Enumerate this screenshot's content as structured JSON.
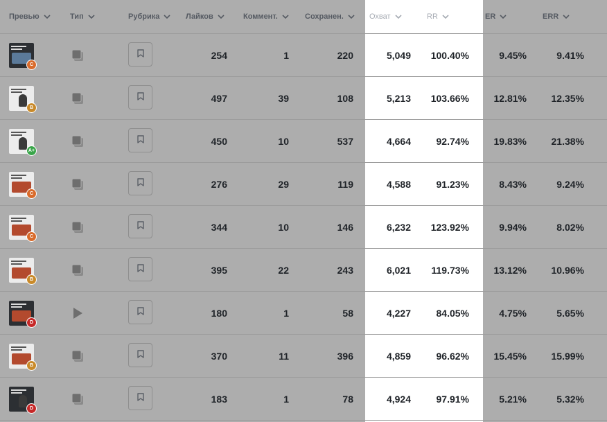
{
  "colors": {
    "page_bg": "#adadad",
    "highlight_bg": "#ffffff",
    "badge_c": "#d96b2b",
    "badge_b": "#c98a2a",
    "badge_a_plus": "#3aa54a",
    "badge_d": "#c62828"
  },
  "columns": [
    {
      "key": "preview",
      "label": "Превью"
    },
    {
      "key": "type",
      "label": "Тип"
    },
    {
      "key": "category",
      "label": "Рубрика"
    },
    {
      "key": "likes",
      "label": "Лайков"
    },
    {
      "key": "comments",
      "label": "Коммент."
    },
    {
      "key": "saved",
      "label": "Сохранен."
    },
    {
      "key": "reach",
      "label": "Охват"
    },
    {
      "key": "rr",
      "label": "RR"
    },
    {
      "key": "er",
      "label": "ER"
    },
    {
      "key": "err",
      "label": "ERR"
    }
  ],
  "rows": [
    {
      "grade": "C",
      "grade_color": "#d96b2b",
      "type_icon": "carousel-icon",
      "likes": "254",
      "comments": "1",
      "saved": "220",
      "reach": "5,049",
      "rr": "100.40%",
      "er": "9.45%",
      "err": "9.41%"
    },
    {
      "grade": "B",
      "grade_color": "#c98a2a",
      "type_icon": "carousel-icon",
      "likes": "497",
      "comments": "39",
      "saved": "108",
      "reach": "5,213",
      "rr": "103.66%",
      "er": "12.81%",
      "err": "12.35%"
    },
    {
      "grade": "A+",
      "grade_color": "#3aa54a",
      "type_icon": "carousel-icon",
      "likes": "450",
      "comments": "10",
      "saved": "537",
      "reach": "4,664",
      "rr": "92.74%",
      "er": "19.83%",
      "err": "21.38%"
    },
    {
      "grade": "C",
      "grade_color": "#d96b2b",
      "type_icon": "carousel-icon",
      "likes": "276",
      "comments": "29",
      "saved": "119",
      "reach": "4,588",
      "rr": "91.23%",
      "er": "8.43%",
      "err": "9.24%"
    },
    {
      "grade": "C",
      "grade_color": "#d96b2b",
      "type_icon": "carousel-icon",
      "likes": "344",
      "comments": "10",
      "saved": "146",
      "reach": "6,232",
      "rr": "123.92%",
      "er": "9.94%",
      "err": "8.02%"
    },
    {
      "grade": "B",
      "grade_color": "#c98a2a",
      "type_icon": "carousel-icon",
      "likes": "395",
      "comments": "22",
      "saved": "243",
      "reach": "6,021",
      "rr": "119.73%",
      "er": "13.12%",
      "err": "10.96%"
    },
    {
      "grade": "D",
      "grade_color": "#c62828",
      "type_icon": "video-play-icon",
      "likes": "180",
      "comments": "1",
      "saved": "58",
      "reach": "4,227",
      "rr": "84.05%",
      "er": "4.75%",
      "err": "5.65%"
    },
    {
      "grade": "B",
      "grade_color": "#c98a2a",
      "type_icon": "carousel-icon",
      "likes": "370",
      "comments": "11",
      "saved": "396",
      "reach": "4,859",
      "rr": "96.62%",
      "er": "15.45%",
      "err": "15.99%"
    },
    {
      "grade": "D",
      "grade_color": "#c62828",
      "type_icon": "carousel-icon",
      "likes": "183",
      "comments": "1",
      "saved": "78",
      "reach": "4,924",
      "rr": "97.91%",
      "er": "5.21%",
      "err": "5.32%"
    }
  ]
}
